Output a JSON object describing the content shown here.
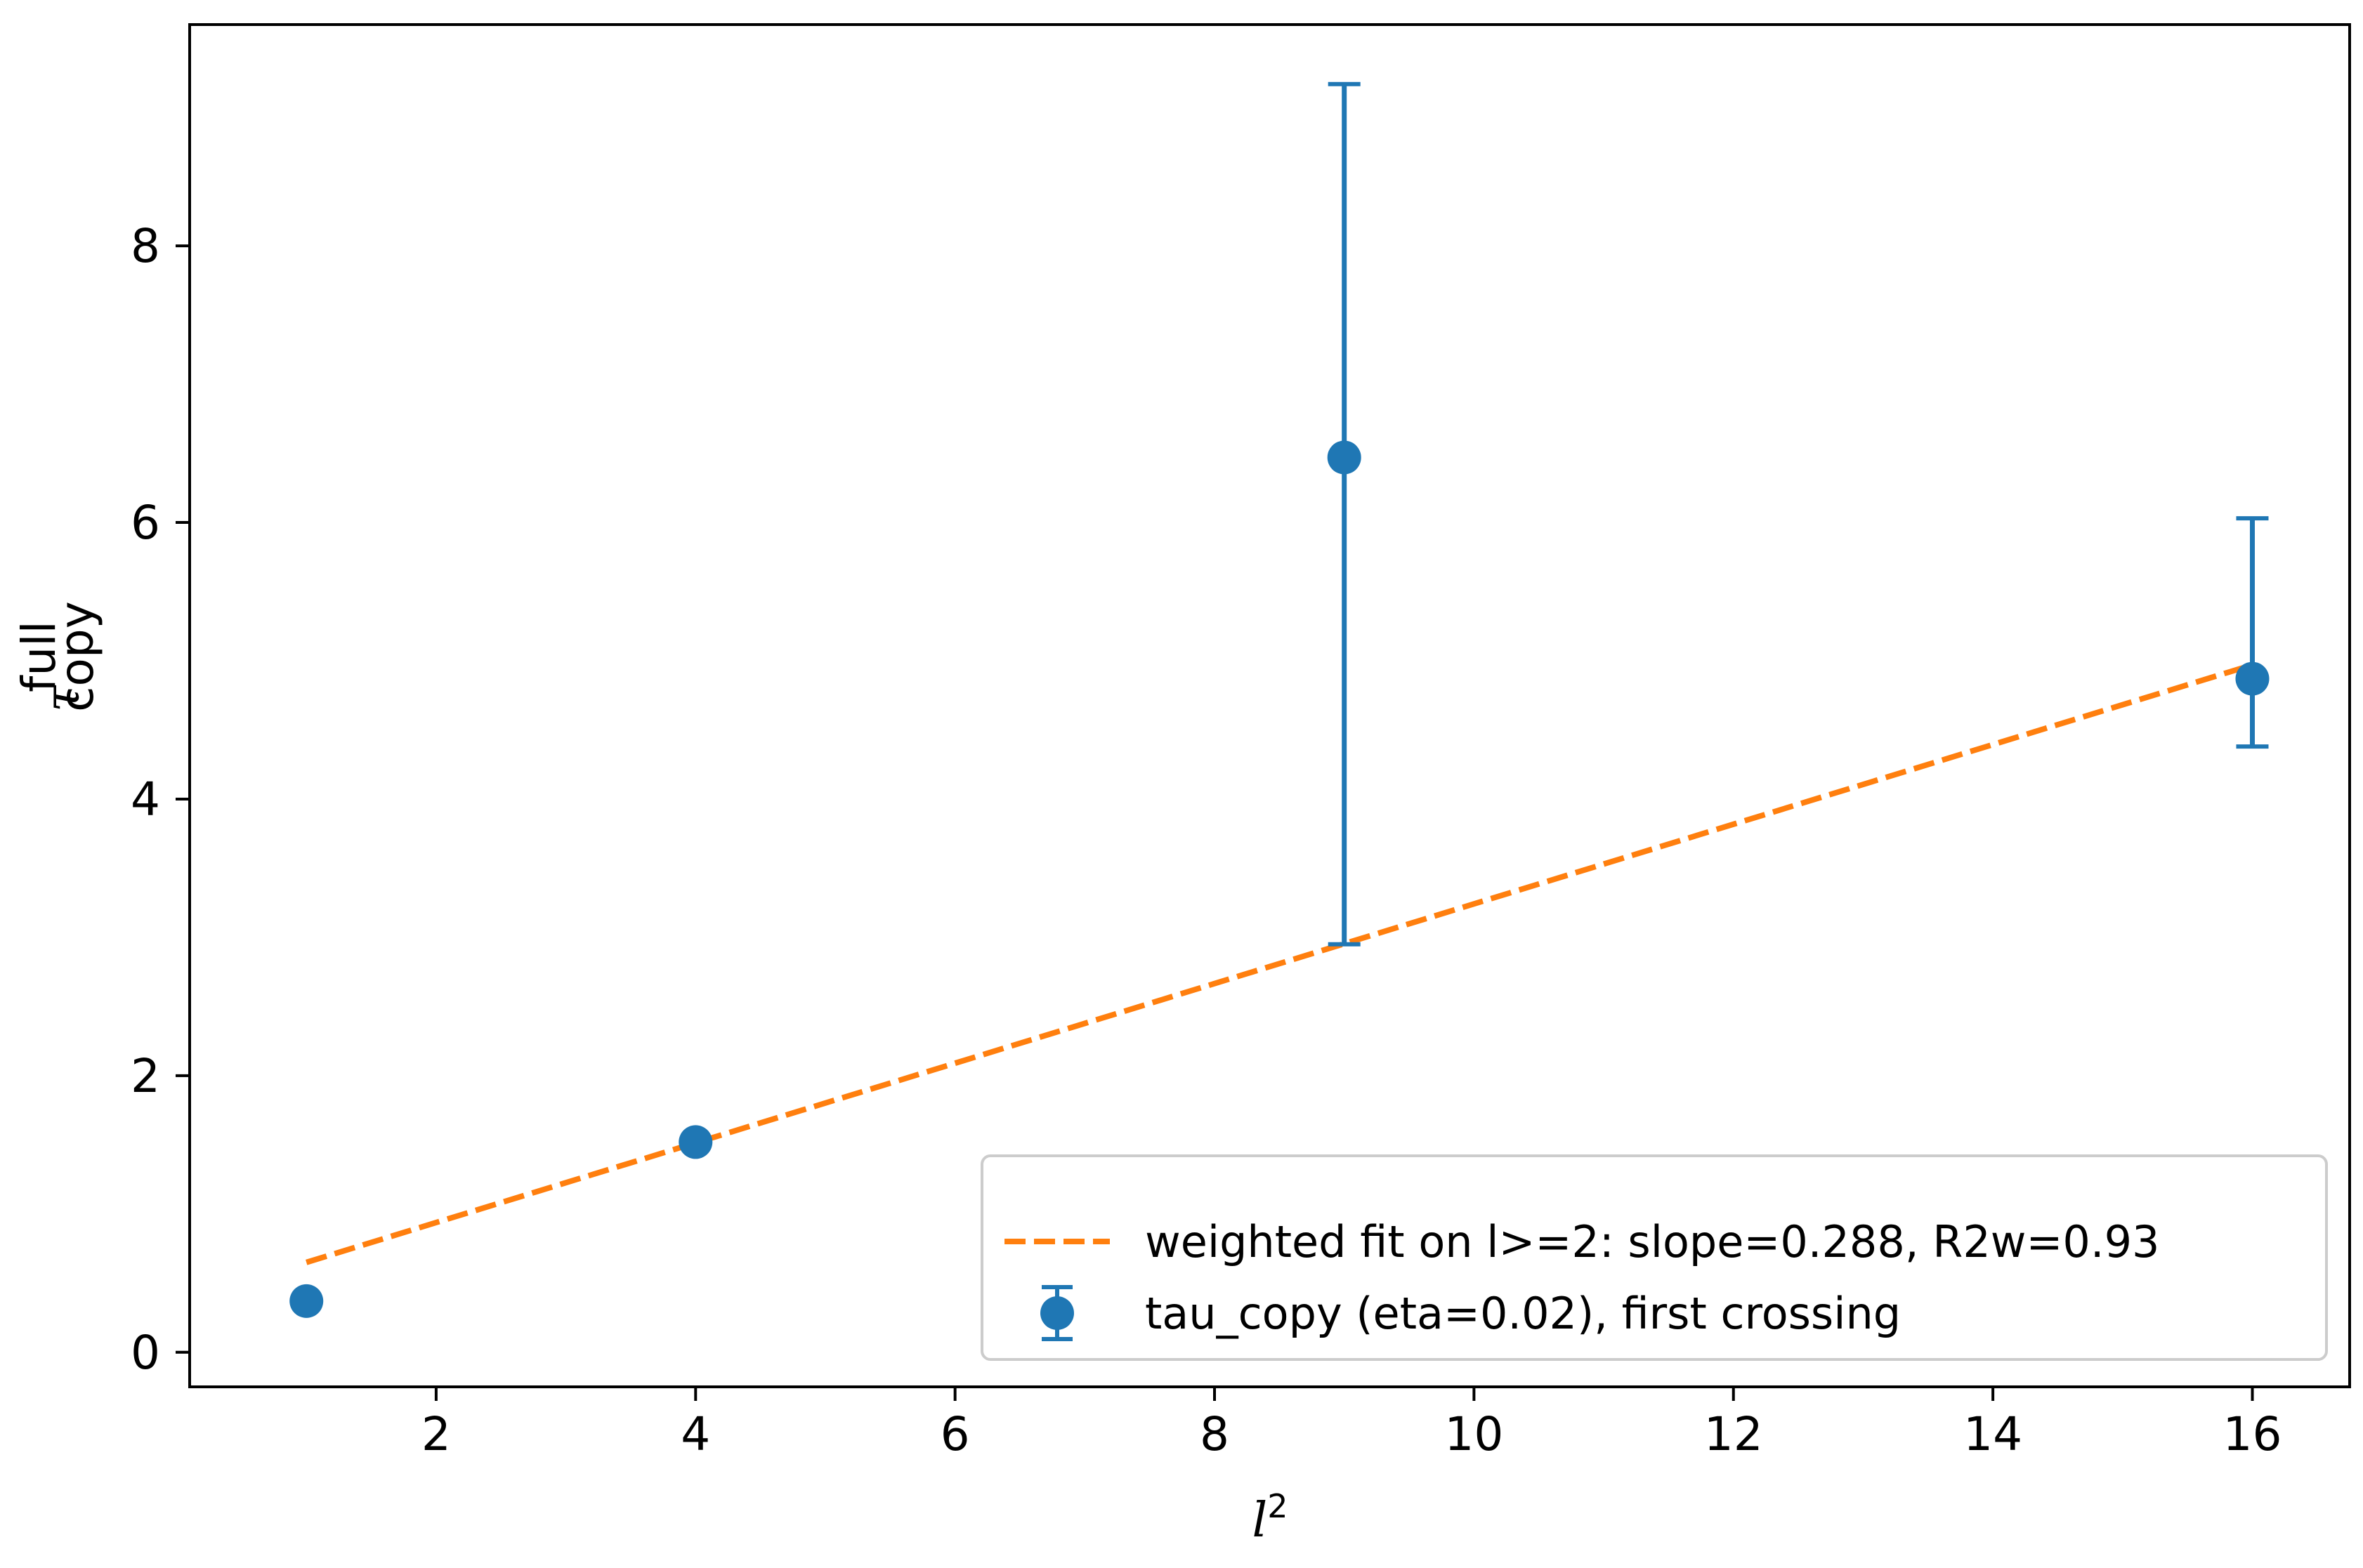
{
  "chart_data": {
    "type": "scatter",
    "title": "",
    "xlabel": {
      "base": "l",
      "sup": "2"
    },
    "ylabel": {
      "base": "τ",
      "sup": "full",
      "sub": "copy"
    },
    "xlim": [
      0.1,
      16.75
    ],
    "ylim": [
      -0.25,
      9.6
    ],
    "xticks": [
      2,
      4,
      6,
      8,
      10,
      12,
      14,
      16
    ],
    "yticks": [
      0,
      2,
      4,
      6,
      8
    ],
    "grid": false,
    "legend_position": "bottom-right",
    "colors": {
      "points": "#1f77b4",
      "fit": "#ff7f0e"
    },
    "series": [
      {
        "name": "tau_copy (eta=0.02), first crossing",
        "kind": "errorbar",
        "x": [
          1,
          4,
          9,
          16
        ],
        "y": [
          0.37,
          1.52,
          6.47,
          4.87
        ],
        "yerr_low": [
          0.0,
          0.0,
          3.52,
          0.49
        ],
        "yerr_high": [
          0.0,
          0.0,
          2.7,
          1.16
        ]
      },
      {
        "name": "weighted fit on l>=2: slope=0.288, R2w=0.93",
        "kind": "line",
        "style": "dashed",
        "x": [
          1,
          16
        ],
        "y": [
          0.65,
          4.97
        ]
      }
    ],
    "legend": [
      {
        "label": "weighted fit on l>=2: slope=0.288, R2w=0.93",
        "marker": "dashed-line"
      },
      {
        "label": "tau_copy (eta=0.02), first crossing",
        "marker": "errorbar-point"
      }
    ]
  }
}
